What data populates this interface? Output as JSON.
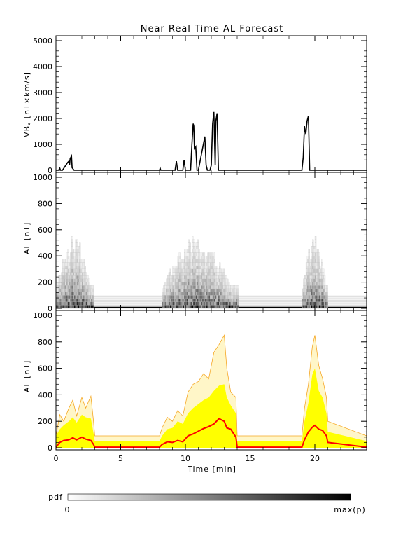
{
  "title": "Near Real Time AL Forecast",
  "chart_data": [
    {
      "id": "vbs",
      "type": "line",
      "ylabel_main": "VB",
      "ylabel_sub": "s",
      "ylabel_rest": " [nT×km/s]",
      "xlim": [
        0,
        24
      ],
      "ylim": [
        0,
        5000
      ],
      "yticks": [
        "0",
        "1000",
        "2000",
        "3000",
        "4000",
        "5000"
      ],
      "x": [
        0,
        0.2,
        0.3,
        0.35,
        0.5,
        0.9,
        1.0,
        1.05,
        1.1,
        1.2,
        1.25,
        1.4,
        8.0,
        8.05,
        8.1,
        9.2,
        9.3,
        9.4,
        9.8,
        9.9,
        10.0,
        10.4,
        10.5,
        10.6,
        10.65,
        10.7,
        10.8,
        10.9,
        11.0,
        11.5,
        11.6,
        11.7,
        11.8,
        11.9,
        12.0,
        12.1,
        12.2,
        12.3,
        12.35,
        12.45,
        12.55,
        12.65,
        12.7,
        19.0,
        19.1,
        19.2,
        19.3,
        19.4,
        19.5,
        19.6,
        19.7,
        24
      ],
      "values": [
        0,
        0,
        80,
        0,
        0,
        300,
        350,
        200,
        450,
        550,
        100,
        0,
        0,
        80,
        0,
        0,
        350,
        0,
        0,
        400,
        0,
        0,
        1000,
        1800,
        1700,
        800,
        900,
        0,
        0,
        1300,
        200,
        0,
        0,
        0,
        200,
        1800,
        2250,
        200,
        1900,
        2200,
        0,
        0,
        0,
        0,
        500,
        1700,
        1400,
        1900,
        2100,
        0,
        0,
        0
      ]
    },
    {
      "id": "al-pdf",
      "type": "heatmap",
      "ylabel": "−AL [nT]",
      "xlim": [
        0,
        24
      ],
      "ylim": [
        0,
        1000
      ],
      "yticks": [
        "0",
        "200",
        "400",
        "600",
        "800",
        "1000"
      ],
      "active_intervals": [
        [
          0.0,
          2.9
        ],
        [
          8.2,
          14.0
        ],
        [
          19.0,
          21.0
        ]
      ]
    },
    {
      "id": "al-percentiles",
      "type": "area",
      "ylabel": "−AL [nT]",
      "xlabel": "Time [min]",
      "xlim": [
        0,
        24
      ],
      "ylim": [
        0,
        1000
      ],
      "yticks": [
        "0",
        "200",
        "400",
        "600",
        "800",
        "1000"
      ],
      "xticks": [
        "0",
        "5",
        "10",
        "15",
        "20"
      ],
      "x": [
        0,
        0.3,
        0.6,
        1.0,
        1.3,
        1.6,
        2.0,
        2.3,
        2.7,
        2.9,
        3.0,
        8.0,
        8.2,
        8.6,
        9.0,
        9.4,
        9.8,
        10.2,
        10.6,
        11.0,
        11.4,
        11.8,
        12.2,
        12.6,
        13.0,
        13.2,
        13.5,
        13.9,
        14.0,
        19.0,
        19.2,
        19.5,
        19.8,
        20.0,
        20.3,
        20.6,
        20.9,
        21.0,
        24
      ],
      "outer_upper": [
        90,
        250,
        200,
        300,
        360,
        240,
        380,
        300,
        390,
        200,
        90,
        90,
        150,
        230,
        200,
        280,
        240,
        420,
        480,
        500,
        560,
        520,
        720,
        780,
        850,
        600,
        420,
        380,
        90,
        90,
        300,
        480,
        760,
        850,
        620,
        520,
        380,
        200,
        90
      ],
      "inner_upper": [
        90,
        140,
        170,
        200,
        230,
        190,
        250,
        230,
        220,
        110,
        50,
        50,
        90,
        140,
        150,
        200,
        180,
        260,
        300,
        330,
        360,
        380,
        430,
        470,
        480,
        380,
        320,
        260,
        50,
        50,
        200,
        340,
        550,
        600,
        430,
        380,
        260,
        120,
        50
      ],
      "median": [
        5,
        40,
        55,
        60,
        75,
        60,
        80,
        65,
        55,
        25,
        5,
        5,
        25,
        45,
        40,
        55,
        45,
        90,
        105,
        125,
        145,
        160,
        180,
        220,
        200,
        150,
        140,
        80,
        5,
        5,
        60,
        120,
        155,
        170,
        140,
        130,
        90,
        40,
        5
      ]
    }
  ],
  "colorbar": {
    "label": "pdf",
    "min_label": "0",
    "max_label": "max(p)"
  },
  "colors": {
    "outer_band": "#f5a623",
    "inner_band": "#ffff00",
    "median": "#ff0000",
    "baseline_band": "#fbe7b0"
  }
}
